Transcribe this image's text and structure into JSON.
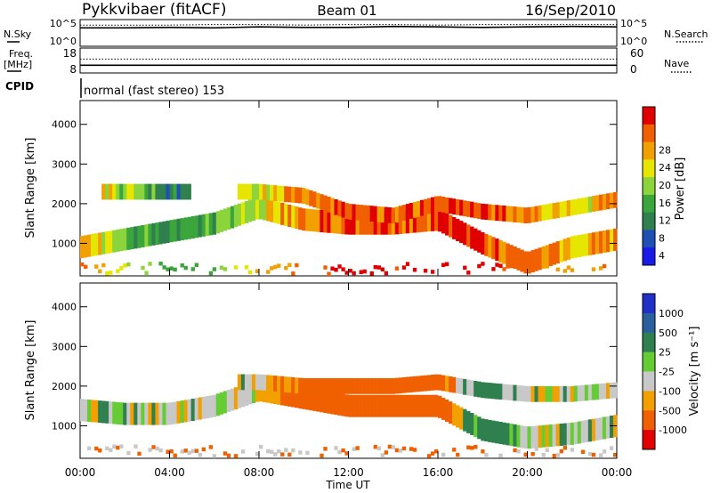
{
  "header": {
    "station": "Pykkvibaer (fitACF)",
    "beam": "Beam 01",
    "date": "16/Sep/2010"
  },
  "strip_labels": {
    "nsky": "N.Sky",
    "nsearch": "N.Search",
    "freq": "Freq.",
    "freq_unit": "[MHz]",
    "nave": "Nave",
    "cpid": "CPID",
    "mode": "normal (fast stereo) 153"
  },
  "colors": {
    "power": [
      "#1a1ae6",
      "#1e4fb4",
      "#2f7f4f",
      "#3aa53a",
      "#8cd43c",
      "#e6e600",
      "#f2a000",
      "#f06000",
      "#e00000"
    ],
    "velocity": [
      "#1f2fc8",
      "#2a5f9e",
      "#2f7f4f",
      "#66cc33",
      "#c8c8c8",
      "#f2a000",
      "#f06000",
      "#e00000"
    ],
    "background": "#ffffff"
  },
  "chart_data": [
    {
      "type": "line",
      "name": "noise-strip",
      "left_ticks": [
        "10^5",
        "10^0"
      ],
      "right_ticks": [
        "10^5",
        "10^0"
      ],
      "series": [
        {
          "name": "N.Sky",
          "values": [
            3.6,
            3.6,
            3.7,
            3.6,
            3.8,
            3.7,
            3.7,
            3.9,
            3.8,
            3.7,
            3.8,
            3.9,
            3.8
          ]
        },
        {
          "name": "N.Search",
          "values": [
            4.2,
            4.2,
            4.2,
            4.3,
            4.3,
            4.2,
            4.3,
            4.3,
            4.2,
            4.3,
            4.3,
            4.3,
            4.3
          ]
        }
      ]
    },
    {
      "type": "line",
      "name": "freq-nave-strip",
      "left_ticks": [
        "18",
        "8"
      ],
      "right_ticks": [
        "60",
        "0"
      ],
      "series": [
        {
          "name": "Freq.",
          "values": [
            10.8,
            10.8,
            10.8,
            10.8,
            10.8,
            10.8,
            10.8,
            10.8,
            10.8,
            10.8,
            10.8,
            10.8,
            10.8
          ]
        },
        {
          "name": "Nave",
          "values": [
            34,
            34,
            34,
            34,
            34,
            34,
            34,
            34,
            34,
            34,
            34,
            34,
            34
          ]
        }
      ]
    },
    {
      "type": "heatmap",
      "name": "power",
      "ylabel": "Slant Range [km]",
      "colorbar_label": "Power [dB]",
      "colorbar_ticks": [
        "4",
        "8",
        "12",
        "16",
        "20",
        "24",
        "28"
      ],
      "ylim": [
        180,
        4600
      ],
      "y_ticks": [
        "1000",
        "2000",
        "3000",
        "4000"
      ],
      "x_hours": [
        0,
        2,
        4,
        6,
        8,
        10,
        12,
        14,
        16,
        18,
        20,
        22,
        24
      ],
      "upper_band_km": [
        null,
        2300,
        2300,
        null,
        2300,
        2200,
        1800,
        1700,
        2000,
        1800,
        1700,
        1900,
        2100
      ],
      "lower_band_km": [
        900,
        1100,
        1300,
        1500,
        1900,
        1600,
        1500,
        1500,
        1600,
        1000,
        500,
        900,
        1100
      ],
      "band_power_db": [
        24,
        16,
        10,
        12,
        20,
        24,
        28,
        26,
        28,
        28,
        24,
        20,
        24
      ]
    },
    {
      "type": "heatmap",
      "name": "velocity",
      "ylabel": "Slant Range [km]",
      "colorbar_label": "Velocity [m s⁻¹]",
      "colorbar_ticks": [
        "1000",
        "500",
        "25",
        "-25",
        "-100",
        "-500",
        "-1000"
      ],
      "ylim": [
        180,
        4600
      ],
      "y_ticks": [
        "1000",
        "2000",
        "3000",
        "4000"
      ],
      "x_hours": [
        0,
        2,
        4,
        6,
        8,
        10,
        12,
        14,
        16,
        18,
        20,
        22,
        24
      ],
      "upper_band_km": [
        null,
        null,
        null,
        null,
        2100,
        2000,
        2000,
        2000,
        2100,
        1900,
        1800,
        1800,
        1900
      ],
      "lower_band_km": [
        1400,
        1300,
        1300,
        1500,
        1900,
        1700,
        1500,
        1500,
        1500,
        900,
        700,
        800,
        1000
      ],
      "band_velocity_ms": [
        0,
        0,
        0,
        0,
        -50,
        -300,
        -400,
        -400,
        -300,
        200,
        0,
        0,
        0
      ]
    }
  ],
  "x_axis": {
    "ticks": [
      "00:00",
      "04:00",
      "08:00",
      "12:00",
      "16:00",
      "20:00",
      "00:00"
    ],
    "label": "Time UT"
  }
}
